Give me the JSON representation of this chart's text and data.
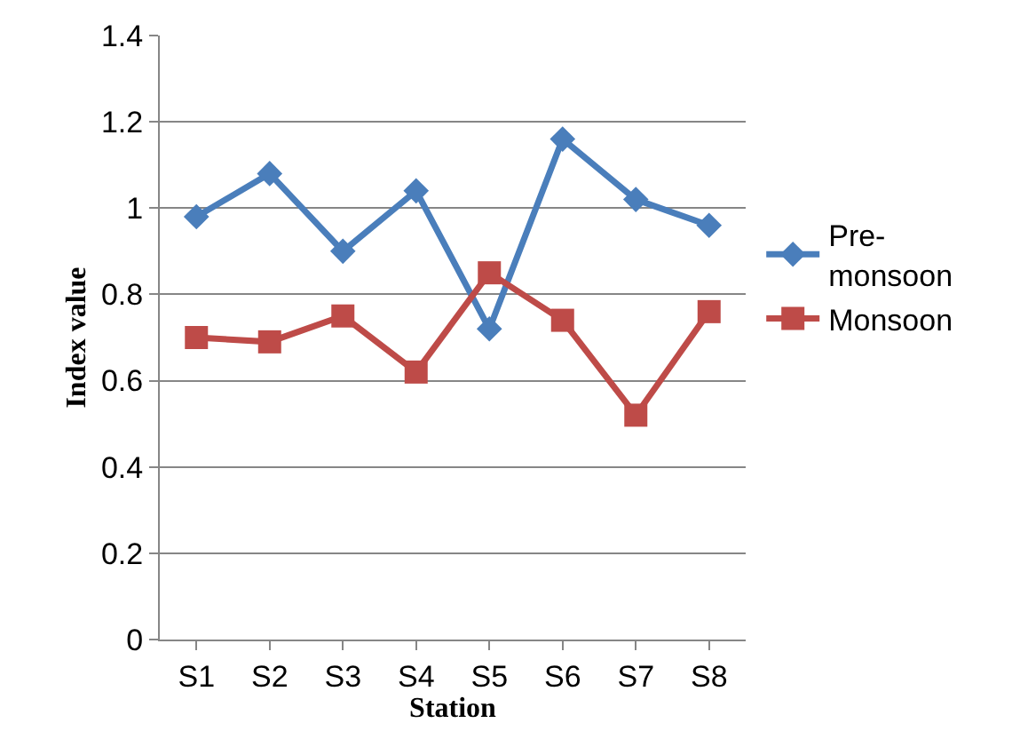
{
  "chart_data": {
    "type": "line",
    "xlabel": "Station",
    "ylabel": "Index value",
    "categories": [
      "S1",
      "S2",
      "S3",
      "S4",
      "S5",
      "S6",
      "S7",
      "S8"
    ],
    "series": [
      {
        "name": "Pre-monsoon",
        "color": "#4a7ebb",
        "marker": "diamond",
        "values": [
          0.98,
          1.08,
          0.9,
          1.04,
          0.72,
          1.16,
          1.02,
          0.96
        ]
      },
      {
        "name": "Monsoon",
        "color": "#be4b48",
        "marker": "square",
        "values": [
          0.7,
          0.69,
          0.75,
          0.62,
          0.85,
          0.74,
          0.52,
          0.76
        ]
      }
    ],
    "ylim": [
      0,
      1.4
    ],
    "yticks": [
      0,
      0.2,
      0.4,
      0.6,
      0.8,
      1,
      1.2,
      1.4
    ],
    "grid": "y",
    "legend": "right",
    "line_style": "solid"
  }
}
